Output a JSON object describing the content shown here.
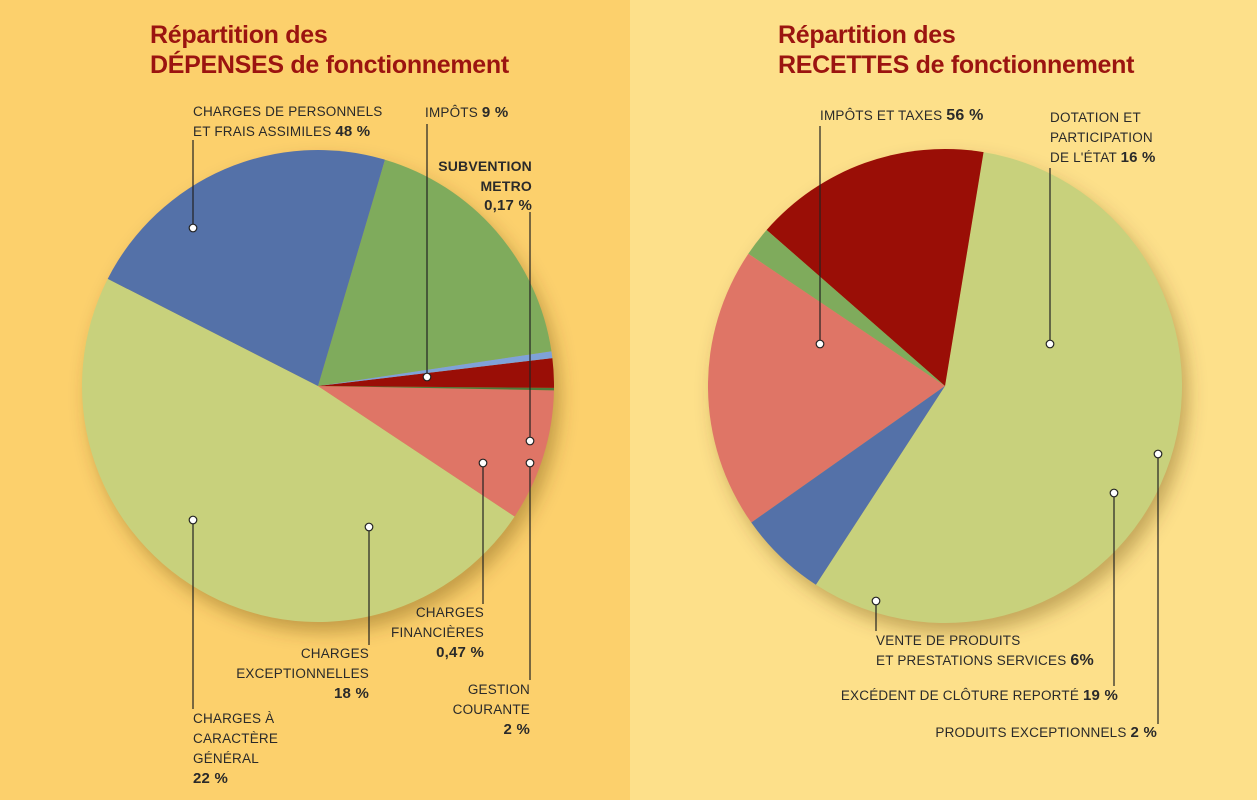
{
  "colors": {
    "background_left": "#fcd06c",
    "background_right": "#fde08a",
    "title": "#9b1410",
    "light_green": "#c8d17c",
    "salmon": "#df7566",
    "dark_green": "#4e7a3a",
    "dark_red": "#9a0e06",
    "light_blue": "#7fa2d8",
    "green": "#7fab5c",
    "blue": "#5471a8"
  },
  "chart_data": [
    {
      "type": "pie",
      "title_line1": "Répartition des",
      "title_line2": "DÉPENSES de fonctionnement",
      "slices": [
        {
          "label_lines": [
            "CHARGES DE PERSONNELS",
            "ET FRAIS ASSIMILES"
          ],
          "value_text": "48 %",
          "value": 48,
          "color": "#c8d17c"
        },
        {
          "label_lines": [
            "IMPÔTS"
          ],
          "value_text": "9 %",
          "value": 9,
          "color": "#df7566"
        },
        {
          "label_lines": [
            "SUBVENTION",
            "METRO"
          ],
          "value_text": "0,17 %",
          "value": 0.17,
          "color": "#4e7a3a"
        },
        {
          "label_lines": [
            "GESTION",
            "COURANTE"
          ],
          "value_text": "2 %",
          "value": 2,
          "color": "#9a0e06"
        },
        {
          "label_lines": [
            "CHARGES",
            "FINANCIÈRES"
          ],
          "value_text": "0,47 %",
          "value": 0.47,
          "color": "#7fa2d8"
        },
        {
          "label_lines": [
            "CHARGES",
            "EXCEPTIONNELLES"
          ],
          "value_text": "18 %",
          "value": 18,
          "color": "#7fab5c"
        },
        {
          "label_lines": [
            "CHARGES À",
            "CARACTÈRE",
            "GÉNÉRAL"
          ],
          "value_text": "22 %",
          "value": 22,
          "color": "#5471a8"
        }
      ]
    },
    {
      "type": "pie",
      "title_line1": "Répartition des",
      "title_line2": "RECETTES de fonctionnement",
      "slices": [
        {
          "label_lines": [
            "IMPÔTS ET TAXES"
          ],
          "value_text": "56 %",
          "value": 56,
          "color": "#c8d17c"
        },
        {
          "label_lines": [
            "DOTATION ET",
            "PARTICIPATION",
            "DE L'ÉTAT"
          ],
          "value_text": "16 %",
          "value": 16,
          "color": "#9a0e06"
        },
        {
          "label_lines": [
            "PRODUITS EXCEPTIONNELS"
          ],
          "value_text": "2 %",
          "value": 2,
          "color": "#7fab5c"
        },
        {
          "label_lines": [
            "EXCÉDENT DE CLÔTURE REPORTÉ"
          ],
          "value_text": "19 %",
          "value": 19,
          "color": "#df7566"
        },
        {
          "label_lines": [
            "VENTE DE PRODUITS",
            "ET PRESTATIONS SERVICES"
          ],
          "value_text": "6%",
          "value": 6,
          "color": "#5471a8"
        }
      ]
    }
  ]
}
